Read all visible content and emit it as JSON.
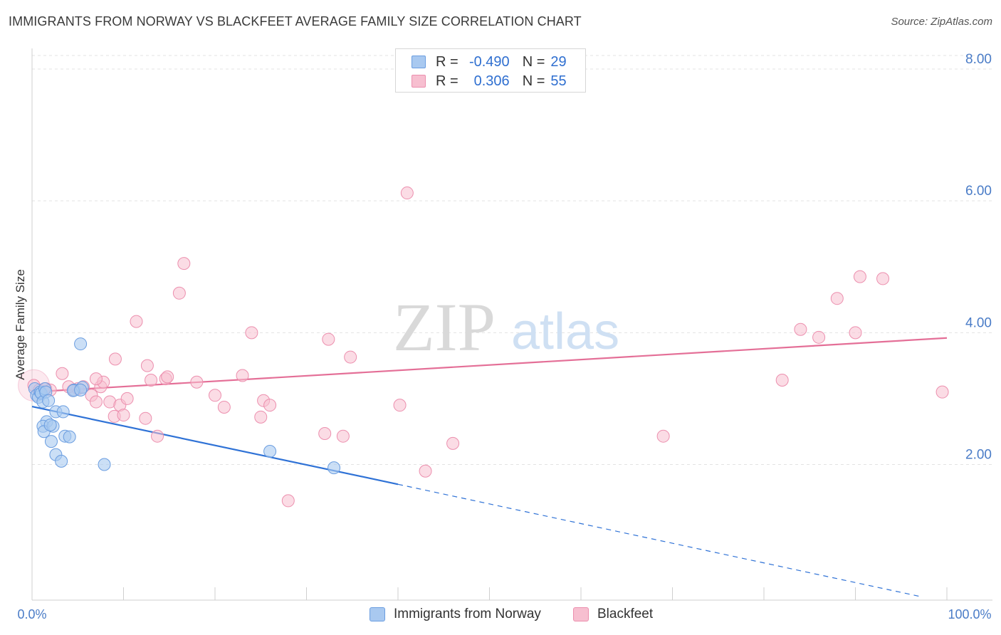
{
  "title": "IMMIGRANTS FROM NORWAY VS BLACKFEET AVERAGE FAMILY SIZE CORRELATION CHART",
  "source": "Source: ZipAtlas.com",
  "watermark": {
    "left": "ZIP",
    "right": "atlas"
  },
  "legend_top": {
    "rows": [
      {
        "r_label": "R =",
        "r_value": "-0.490",
        "n_label": "N =",
        "n_value": "29"
      },
      {
        "r_label": "R =",
        "r_value": "0.306",
        "n_label": "N =",
        "n_value": "55"
      }
    ]
  },
  "colors": {
    "blue_fill": "#a9c9f0",
    "blue_stroke": "#6a9de0",
    "blue_line": "#2f72d6",
    "pink_fill": "#f7bfd0",
    "pink_stroke": "#ec8fae",
    "pink_line": "#e46f97",
    "tick_label": "#4a7cc7",
    "grid": "#e3e3e3"
  },
  "chart_data": {
    "type": "scatter",
    "title": "IMMIGRANTS FROM NORWAY VS BLACKFEET AVERAGE FAMILY SIZE CORRELATION CHART",
    "xlabel": "",
    "ylabel": "Average Family Size",
    "xlim": [
      0,
      100
    ],
    "ylim": [
      0,
      8.3
    ],
    "x_tick_labels": [
      "0.0%",
      "100.0%"
    ],
    "y_ticks": [
      2,
      4,
      6,
      8
    ],
    "y_tick_labels": [
      "2.00",
      "4.00",
      "6.00",
      "8.00"
    ],
    "grid": "horizontal dashed",
    "legend_position": "bottom-center",
    "series": [
      {
        "name": "Immigrants from Norway",
        "color": "#a9c9f0",
        "R": -0.49,
        "N": 29,
        "points": [
          [
            0.3,
            3.15
          ],
          [
            0.5,
            3.05
          ],
          [
            0.7,
            3.02
          ],
          [
            0.9,
            3.1
          ],
          [
            1.0,
            3.08
          ],
          [
            1.2,
            2.95
          ],
          [
            1.4,
            3.15
          ],
          [
            1.5,
            3.1
          ],
          [
            1.6,
            2.65
          ],
          [
            1.2,
            2.58
          ],
          [
            1.3,
            2.5
          ],
          [
            1.8,
            2.97
          ],
          [
            2.1,
            2.35
          ],
          [
            2.3,
            2.58
          ],
          [
            2.6,
            2.8
          ],
          [
            3.4,
            2.8
          ],
          [
            2.6,
            2.15
          ],
          [
            3.2,
            2.05
          ],
          [
            3.6,
            2.43
          ],
          [
            4.1,
            2.42
          ],
          [
            4.6,
            3.13
          ],
          [
            5.5,
            3.17
          ],
          [
            4.5,
            3.12
          ],
          [
            5.3,
            3.13
          ],
          [
            5.3,
            3.83
          ],
          [
            7.9,
            2.0
          ],
          [
            26.0,
            2.2
          ],
          [
            33.0,
            1.95
          ],
          [
            2.0,
            2.6
          ]
        ],
        "trend": {
          "x1": 0,
          "y1": 2.88,
          "x2": 40,
          "y2": 1.7,
          "dashed_to_x": 97,
          "dashed_to_y": 0.0
        }
      },
      {
        "name": "Blackfeet",
        "color": "#f7bfd0",
        "R": 0.306,
        "N": 55,
        "points": [
          [
            0.2,
            3.2
          ],
          [
            0.8,
            3.13
          ],
          [
            1.5,
            3.15
          ],
          [
            2.0,
            3.13
          ],
          [
            3.3,
            3.38
          ],
          [
            4.5,
            3.13
          ],
          [
            5.0,
            3.15
          ],
          [
            5.6,
            3.18
          ],
          [
            6.5,
            3.05
          ],
          [
            7.0,
            2.95
          ],
          [
            7.5,
            3.18
          ],
          [
            7.8,
            3.25
          ],
          [
            7.0,
            3.3
          ],
          [
            8.5,
            2.95
          ],
          [
            9.0,
            2.73
          ],
          [
            9.1,
            3.6
          ],
          [
            9.6,
            2.9
          ],
          [
            10.0,
            2.75
          ],
          [
            10.4,
            3.0
          ],
          [
            11.4,
            4.17
          ],
          [
            12.4,
            2.7
          ],
          [
            12.6,
            3.5
          ],
          [
            13.0,
            3.28
          ],
          [
            13.7,
            2.43
          ],
          [
            14.6,
            3.3
          ],
          [
            14.8,
            3.33
          ],
          [
            16.1,
            4.6
          ],
          [
            16.6,
            5.05
          ],
          [
            18.0,
            3.25
          ],
          [
            20.0,
            3.05
          ],
          [
            21.0,
            2.87
          ],
          [
            23.0,
            3.35
          ],
          [
            24.0,
            4.0
          ],
          [
            25.0,
            2.72
          ],
          [
            25.3,
            2.97
          ],
          [
            28.0,
            1.45
          ],
          [
            32.0,
            2.47
          ],
          [
            32.4,
            3.9
          ],
          [
            34.0,
            2.43
          ],
          [
            34.8,
            3.63
          ],
          [
            40.2,
            2.9
          ],
          [
            41.0,
            6.12
          ],
          [
            43.0,
            1.9
          ],
          [
            46.0,
            2.32
          ],
          [
            69.0,
            2.43
          ],
          [
            82.0,
            3.28
          ],
          [
            84.0,
            4.05
          ],
          [
            86.0,
            3.93
          ],
          [
            88.0,
            4.52
          ],
          [
            90.0,
            4.0
          ],
          [
            90.5,
            4.85
          ],
          [
            93.0,
            4.82
          ],
          [
            99.5,
            3.1
          ],
          [
            4.0,
            3.18
          ],
          [
            26.0,
            2.9
          ]
        ],
        "trend": {
          "x1": 0,
          "y1": 3.1,
          "x2": 100,
          "y2": 3.92
        }
      }
    ]
  },
  "bottom_legend": [
    {
      "label": "Immigrants from Norway"
    },
    {
      "label": "Blackfeet"
    }
  ]
}
